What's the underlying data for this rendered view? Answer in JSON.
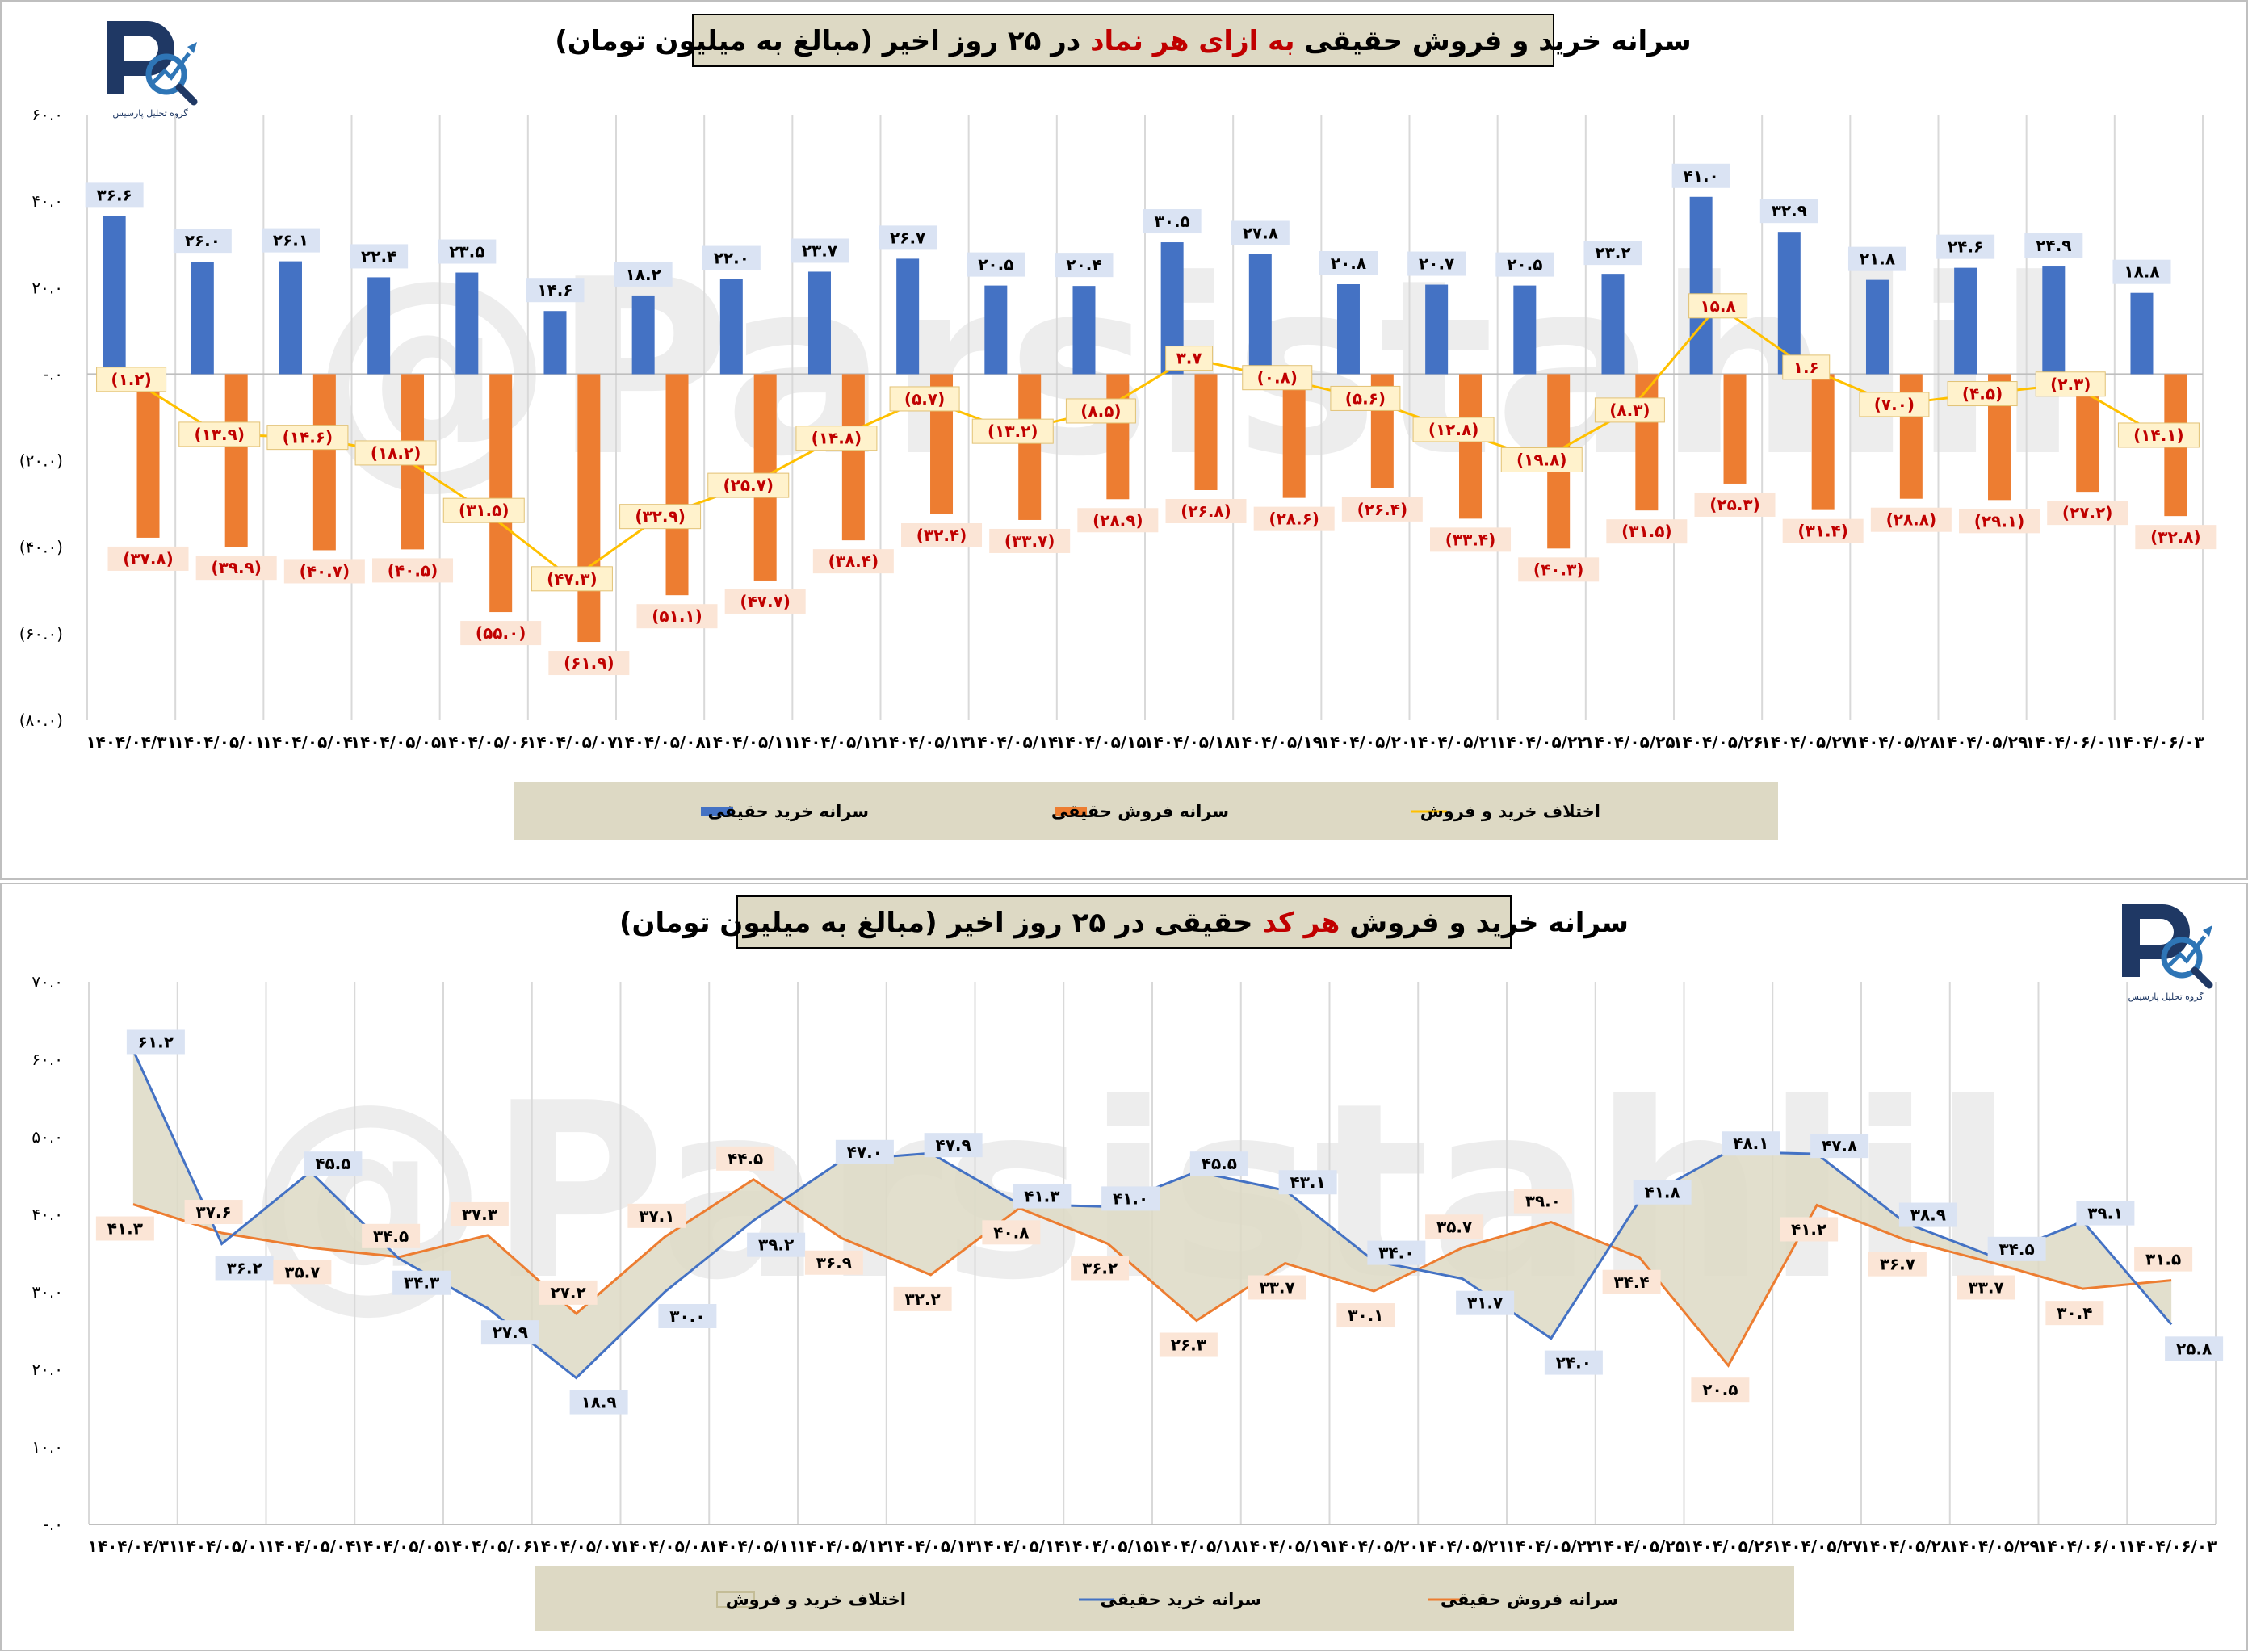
{
  "watermark": "@Parsistahlil",
  "logo": {
    "text": "گروه تحلیل پارسیس",
    "primary": "#1f3864",
    "accent": "#2e75b6"
  },
  "colors": {
    "buy": "#4472c4",
    "sell": "#ed7d31",
    "diff": "#ffc000",
    "area": "#ddd9c4",
    "legend_bg": "#ddd9c4",
    "buy_label_bg": "#dae3f3",
    "sell_label_bg": "#fbe5d6",
    "sell_label_text": "#c00000",
    "diff_label_bg": "#fff2cc"
  },
  "chart_data": [
    {
      "type": "bar",
      "title": {
        "part1": "سرانه خرید و فروش حقیقی ",
        "highlight": "به ازای هر نماد",
        "part2": " در ۲۵ روز اخیر (مبالغ به میلیون تومان)"
      },
      "categories": [
        "۱۴۰۴/۰۴/۳۱",
        "۱۴۰۴/۰۵/۰۱",
        "۱۴۰۴/۰۵/۰۴",
        "۱۴۰۴/۰۵/۰۵",
        "۱۴۰۴/۰۵/۰۶",
        "۱۴۰۴/۰۵/۰۷",
        "۱۴۰۴/۰۵/۰۸",
        "۱۴۰۴/۰۵/۱۱",
        "۱۴۰۴/۰۵/۱۲",
        "۱۴۰۴/۰۵/۱۳",
        "۱۴۰۴/۰۵/۱۴",
        "۱۴۰۴/۰۵/۱۵",
        "۱۴۰۴/۰۵/۱۸",
        "۱۴۰۴/۰۵/۱۹",
        "۱۴۰۴/۰۵/۲۰",
        "۱۴۰۴/۰۵/۲۱",
        "۱۴۰۴/۰۵/۲۲",
        "۱۴۰۴/۰۵/۲۵",
        "۱۴۰۴/۰۵/۲۶",
        "۱۴۰۴/۰۵/۲۷",
        "۱۴۰۴/۰۵/۲۸",
        "۱۴۰۴/۰۵/۲۹",
        "۱۴۰۴/۰۶/۰۱",
        "۱۴۰۴/۰۶/۰۳"
      ],
      "ylim": [
        -80,
        60
      ],
      "yticks": [
        60,
        40,
        20,
        0,
        -20,
        -40,
        -60,
        -80
      ],
      "ytick_labels": [
        "۶۰.۰",
        "۴۰.۰",
        "۲۰.۰",
        "-.۰",
        "(۲۰.۰)",
        "(۴۰.۰)",
        "(۶۰.۰)",
        "(۸۰.۰)"
      ],
      "series": [
        {
          "name": "سرانه خرید حقیقی",
          "type": "bar",
          "values": [
            36.6,
            26.0,
            26.1,
            22.4,
            23.5,
            14.6,
            18.2,
            22.0,
            23.7,
            26.7,
            20.5,
            20.4,
            30.5,
            27.8,
            20.8,
            20.7,
            20.5,
            23.2,
            41.0,
            32.9,
            21.8,
            24.6,
            24.9,
            18.8
          ],
          "labels": [
            "۳۶.۶",
            "۲۶.۰",
            "۲۶.۱",
            "۲۲.۴",
            "۲۳.۵",
            "۱۴.۶",
            "۱۸.۲",
            "۲۲.۰",
            "۲۳.۷",
            "۲۶.۷",
            "۲۰.۵",
            "۲۰.۴",
            "۳۰.۵",
            "۲۷.۸",
            "۲۰.۸",
            "۲۰.۷",
            "۲۰.۵",
            "۲۳.۲",
            "۴۱.۰",
            "۳۲.۹",
            "۲۱.۸",
            "۲۴.۶",
            "۲۴.۹",
            "۱۸.۸"
          ]
        },
        {
          "name": "سرانه فروش حقیقی",
          "type": "bar",
          "values": [
            -37.8,
            -39.9,
            -40.7,
            -40.5,
            -55.0,
            -61.9,
            -51.1,
            -47.7,
            -38.4,
            -32.4,
            -33.7,
            -28.9,
            -26.8,
            -28.6,
            -26.4,
            -33.4,
            -40.3,
            -31.5,
            -25.3,
            -31.4,
            -28.8,
            -29.1,
            -27.2,
            -32.8
          ],
          "labels": [
            "(۳۷.۸)",
            "(۳۹.۹)",
            "(۴۰.۷)",
            "(۴۰.۵)",
            "(۵۵.۰)",
            "(۶۱.۹)",
            "(۵۱.۱)",
            "(۴۷.۷)",
            "(۳۸.۴)",
            "(۳۲.۴)",
            "(۳۳.۷)",
            "(۲۸.۹)",
            "(۲۶.۸)",
            "(۲۸.۶)",
            "(۲۶.۴)",
            "(۳۳.۴)",
            "(۴۰.۳)",
            "(۳۱.۵)",
            "(۲۵.۳)",
            "(۳۱.۴)",
            "(۲۸.۸)",
            "(۲۹.۱)",
            "(۲۷.۲)",
            "(۳۲.۸)"
          ]
        },
        {
          "name": "اختلاف خرید و فروش",
          "type": "line",
          "values": [
            -1.2,
            -13.9,
            -14.6,
            -18.2,
            -31.5,
            -47.3,
            -32.9,
            -25.7,
            -14.8,
            -5.7,
            -13.2,
            -8.5,
            3.7,
            -0.8,
            -5.6,
            -12.8,
            -19.8,
            -8.3,
            15.8,
            1.6,
            -7.0,
            -4.5,
            -2.3,
            -14.1
          ],
          "labels": [
            "(۱.۲)",
            "(۱۳.۹)",
            "(۱۴.۶)",
            "(۱۸.۲)",
            "(۳۱.۵)",
            "(۴۷.۳)",
            "(۳۲.۹)",
            "(۲۵.۷)",
            "(۱۴.۸)",
            "(۵.۷)",
            "(۱۳.۲)",
            "(۸.۵)",
            "۳.۷",
            "(۰.۸)",
            "(۵.۶)",
            "(۱۲.۸)",
            "(۱۹.۸)",
            "(۸.۳)",
            "۱۵.۸",
            "۱.۶",
            "(۷.۰)",
            "(۴.۵)",
            "(۲.۳)",
            "(۱۴.۱)"
          ]
        }
      ],
      "legend": [
        "سرانه خرید حقیقی",
        "سرانه فروش حقیقی",
        "اختلاف خرید و فروش"
      ],
      "legend_position": "bottom",
      "grid": "vertical"
    },
    {
      "type": "line",
      "title": {
        "part1": "سرانه خرید و فروش ",
        "highlight": "هر کد",
        "part2": " حقیقی در ۲۵ روز اخیر (مبالغ به میلیون تومان)"
      },
      "categories": [
        "۱۴۰۴/۰۴/۳۱",
        "۱۴۰۴/۰۵/۰۱",
        "۱۴۰۴/۰۵/۰۴",
        "۱۴۰۴/۰۵/۰۵",
        "۱۴۰۴/۰۵/۰۶",
        "۱۴۰۴/۰۵/۰۷",
        "۱۴۰۴/۰۵/۰۸",
        "۱۴۰۴/۰۵/۱۱",
        "۱۴۰۴/۰۵/۱۲",
        "۱۴۰۴/۰۵/۱۳",
        "۱۴۰۴/۰۵/۱۴",
        "۱۴۰۴/۰۵/۱۵",
        "۱۴۰۴/۰۵/۱۸",
        "۱۴۰۴/۰۵/۱۹",
        "۱۴۰۴/۰۵/۲۰",
        "۱۴۰۴/۰۵/۲۱",
        "۱۴۰۴/۰۵/۲۲",
        "۱۴۰۴/۰۵/۲۵",
        "۱۴۰۴/۰۵/۲۶",
        "۱۴۰۴/۰۵/۲۷",
        "۱۴۰۴/۰۵/۲۸",
        "۱۴۰۴/۰۵/۲۹",
        "۱۴۰۴/۰۶/۰۱",
        "۱۴۰۴/۰۶/۰۳"
      ],
      "ylim": [
        0,
        70
      ],
      "yticks": [
        70,
        60,
        50,
        40,
        30,
        20,
        10,
        0
      ],
      "ytick_labels": [
        "۷۰.۰",
        "۶۰.۰",
        "۵۰.۰",
        "۴۰.۰",
        "۳۰.۰",
        "۲۰.۰",
        "۱۰.۰",
        "-.۰"
      ],
      "series": [
        {
          "name": "سرانه خرید حقیقی",
          "values": [
            61.2,
            36.2,
            45.5,
            34.3,
            27.9,
            18.9,
            30.0,
            39.2,
            47.0,
            47.9,
            41.3,
            41.0,
            45.5,
            43.1,
            34.0,
            31.7,
            24.0,
            41.8,
            48.1,
            47.8,
            38.9,
            34.5,
            39.1,
            25.8
          ],
          "labels": [
            "۶۱.۲",
            "۳۶.۲",
            "۴۵.۵",
            "۳۴.۳",
            "۲۷.۹",
            "۱۸.۹",
            "۳۰.۰",
            "۳۹.۲",
            "۴۷.۰",
            "۴۷.۹",
            "۴۱.۳",
            "۴۱.۰",
            "۴۵.۵",
            "۴۳.۱",
            "۳۴.۰",
            "۳۱.۷",
            "۲۴.۰",
            "۴۱.۸",
            "۴۸.۱",
            "۴۷.۸",
            "۳۸.۹",
            "۳۴.۵",
            "۳۹.۱",
            "۲۵.۸"
          ]
        },
        {
          "name": "سرانه فروش حقیقی",
          "values": [
            41.3,
            37.6,
            35.7,
            34.5,
            37.3,
            27.2,
            37.1,
            44.5,
            36.9,
            32.2,
            40.8,
            36.2,
            26.3,
            33.7,
            30.1,
            35.7,
            39.0,
            34.4,
            20.5,
            41.2,
            36.7,
            33.7,
            30.4,
            31.5
          ],
          "labels": [
            "۴۱.۳",
            "۳۷.۶",
            "۳۵.۷",
            "۳۴.۵",
            "۳۷.۳",
            "۲۷.۲",
            "۳۷.۱",
            "۴۴.۵",
            "۳۶.۹",
            "۳۲.۲",
            "۴۰.۸",
            "۳۶.۲",
            "۲۶.۳",
            "۳۳.۷",
            "۳۰.۱",
            "۳۵.۷",
            "۳۹.۰",
            "۳۴.۴",
            "۲۰.۵",
            "۴۱.۲",
            "۳۶.۷",
            "۳۳.۷",
            "۳۰.۴",
            "۳۱.۵"
          ]
        }
      ],
      "area_name": "اختلاف خرید و فروش",
      "legend": [
        "اختلاف خرید و فروش",
        "سرانه خرید حقیقی",
        "سرانه فروش حقیقی"
      ],
      "legend_position": "bottom",
      "grid": "vertical"
    }
  ]
}
